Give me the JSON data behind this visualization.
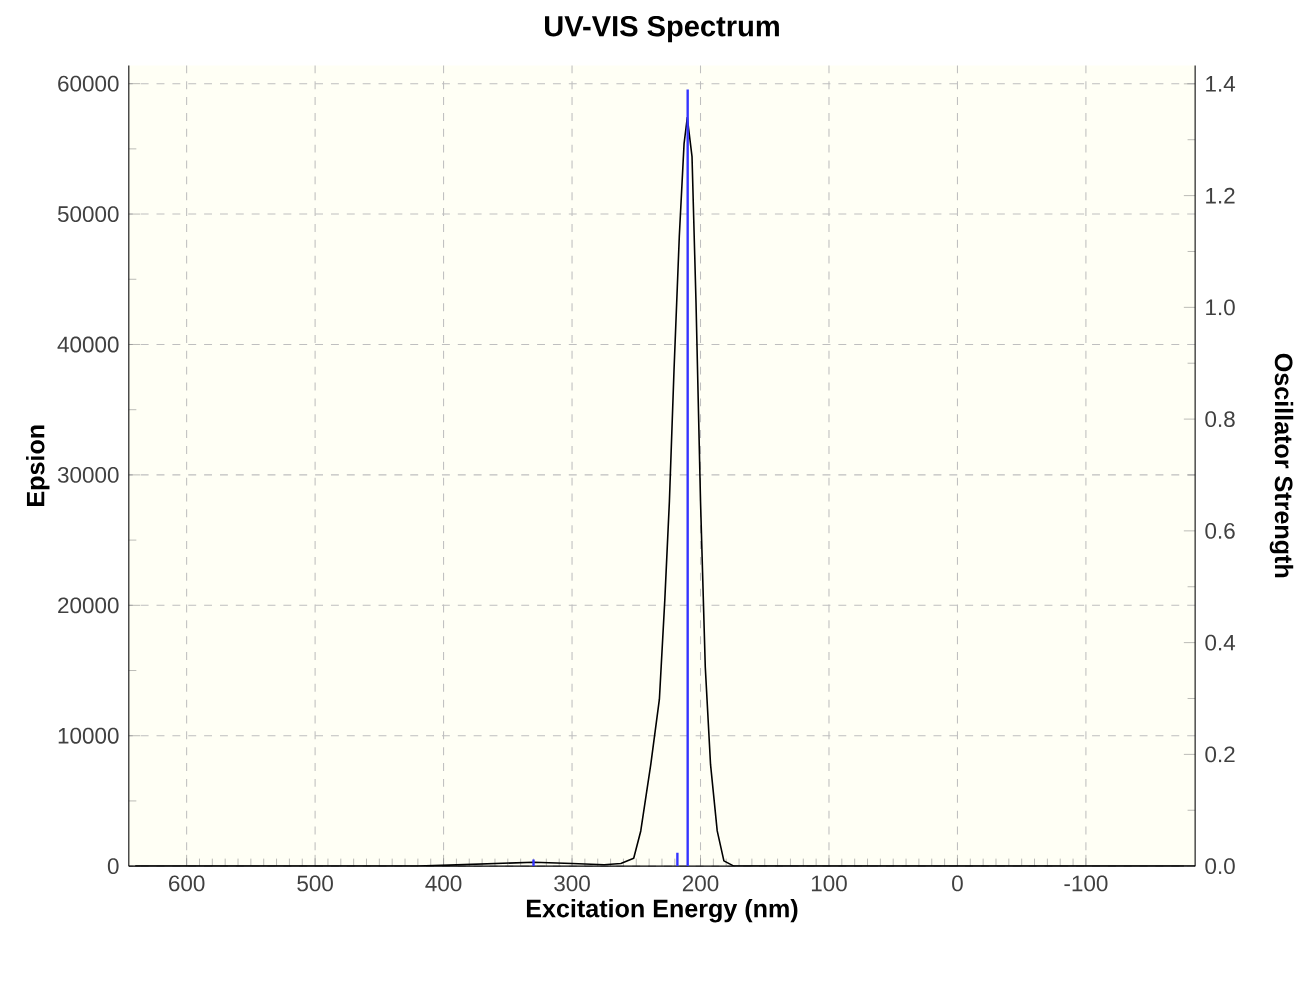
{
  "chart_data": {
    "type": "line",
    "title": "UV-VIS Spectrum",
    "xlabel": "Excitation Energy (nm)",
    "ylabel": "Epsion",
    "y2label": "Oscillator Strength",
    "xlim": [
      645,
      -185
    ],
    "xticks": [
      600,
      500,
      400,
      300,
      200,
      100,
      0,
      -100
    ],
    "ylim": [
      0,
      61400
    ],
    "yticks": [
      0,
      10000,
      20000,
      30000,
      40000,
      50000,
      60000
    ],
    "y2lim": [
      0,
      1.433
    ],
    "y2ticks": [
      {
        "value": 0,
        "label": "0.0"
      },
      0.2,
      0.4,
      0.6,
      0.8,
      {
        "value": 1,
        "label": "1.0"
      },
      1.2,
      1.4
    ],
    "grid": true,
    "marker": "none",
    "line_style": "solid",
    "series": [
      {
        "color": "#000000",
        "x": [
          640,
          420,
          390,
          360,
          330,
          300,
          275,
          262,
          252,
          246.5,
          238.7,
          232,
          227.8,
          224.2,
          220.6,
          216.5,
          212.8,
          210.3,
          206.6,
          203.5,
          200,
          196.3,
          192.2,
          187,
          181.8,
          174,
          -185
        ],
        "values": [
          0,
          0,
          100,
          200,
          300,
          200,
          100,
          200,
          600,
          2700,
          7800,
          12800,
          20400,
          28000,
          38100,
          48300,
          55400,
          57400,
          54400,
          43200,
          28000,
          15300,
          7800,
          2700,
          400,
          0,
          0
        ]
      },
      {
        "type": "bar",
        "axis": "y2",
        "color": "#3333ff",
        "x": [
          330,
          218,
          210
        ],
        "values": [
          0.012,
          0.024,
          1.39
        ]
      }
    ]
  }
}
